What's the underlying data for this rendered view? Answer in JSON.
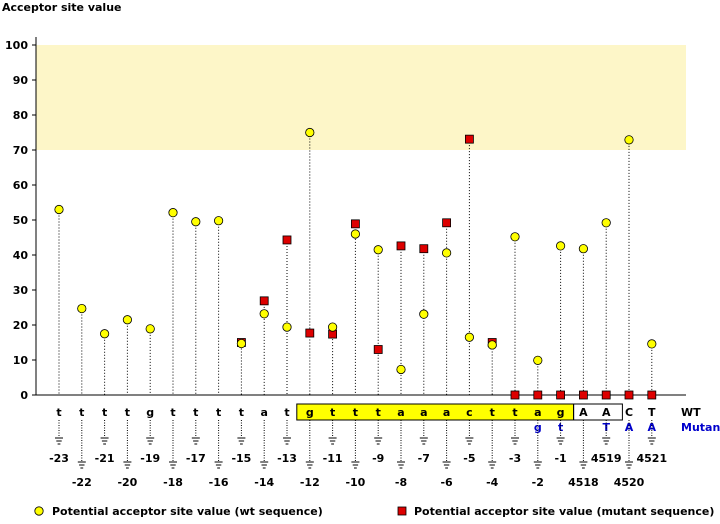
{
  "chart_data": {
    "type": "scatter",
    "ylabel": "Acceptor site value",
    "ylim": [
      0,
      100
    ],
    "yticks": [
      0,
      10,
      20,
      30,
      40,
      50,
      60,
      70,
      80,
      90,
      100
    ],
    "grid": false,
    "highlight_band": {
      "from": 70,
      "to": 100,
      "color": "#fdf6c8"
    },
    "legend_position": "bottom",
    "columns": [
      {
        "wt": "t",
        "mut": "",
        "pos": "-23",
        "wt_value": 53.0,
        "mut_value": null
      },
      {
        "wt": "t",
        "mut": "",
        "pos": "-22",
        "wt_value": 24.7,
        "mut_value": null
      },
      {
        "wt": "t",
        "mut": "",
        "pos": "-21",
        "wt_value": 17.5,
        "mut_value": null
      },
      {
        "wt": "t",
        "mut": "",
        "pos": "-20",
        "wt_value": 21.5,
        "mut_value": null
      },
      {
        "wt": "g",
        "mut": "",
        "pos": "-19",
        "wt_value": 18.9,
        "mut_value": null
      },
      {
        "wt": "t",
        "mut": "",
        "pos": "-18",
        "wt_value": 52.1,
        "mut_value": null
      },
      {
        "wt": "t",
        "mut": "",
        "pos": "-17",
        "wt_value": 49.5,
        "mut_value": null
      },
      {
        "wt": "t",
        "mut": "",
        "pos": "-16",
        "wt_value": 49.8,
        "mut_value": null
      },
      {
        "wt": "t",
        "mut": "",
        "pos": "-15",
        "wt_value": 14.7,
        "mut_value": 15.0
      },
      {
        "wt": "a",
        "mut": "",
        "pos": "-14",
        "wt_value": 23.2,
        "mut_value": 26.9
      },
      {
        "wt": "t",
        "mut": "",
        "pos": "-13",
        "wt_value": 19.4,
        "mut_value": 44.3
      },
      {
        "wt": "g",
        "mut": "",
        "pos": "-12",
        "wt_value": 75.0,
        "mut_value": 17.7
      },
      {
        "wt": "t",
        "mut": "",
        "pos": "-11",
        "wt_value": 19.4,
        "mut_value": 17.4
      },
      {
        "wt": "t",
        "mut": "",
        "pos": "-10",
        "wt_value": 46.0,
        "mut_value": 48.9
      },
      {
        "wt": "t",
        "mut": "",
        "pos": "-9",
        "wt_value": 41.5,
        "mut_value": 13.0
      },
      {
        "wt": "a",
        "mut": "",
        "pos": "-8",
        "wt_value": 7.3,
        "mut_value": 42.6
      },
      {
        "wt": "a",
        "mut": "",
        "pos": "-7",
        "wt_value": 23.1,
        "mut_value": 41.8
      },
      {
        "wt": "a",
        "mut": "",
        "pos": "-6",
        "wt_value": 40.6,
        "mut_value": 49.2
      },
      {
        "wt": "c",
        "mut": "",
        "pos": "-5",
        "wt_value": 16.5,
        "mut_value": 73.1
      },
      {
        "wt": "t",
        "mut": "",
        "pos": "-4",
        "wt_value": 14.3,
        "mut_value": 15.0
      },
      {
        "wt": "t",
        "mut": "",
        "pos": "-3",
        "wt_value": 45.2,
        "mut_value": 0
      },
      {
        "wt": "a",
        "mut": "g",
        "pos": "-2",
        "wt_value": 9.9,
        "mut_value": 0
      },
      {
        "wt": "g",
        "mut": "t",
        "pos": "-1",
        "wt_value": 42.6,
        "mut_value": 0
      },
      {
        "wt": "A",
        "mut": "",
        "pos": "4518",
        "wt_value": 41.8,
        "mut_value": 0
      },
      {
        "wt": "A",
        "mut": "T",
        "pos": "4519",
        "wt_value": 49.2,
        "mut_value": 0
      },
      {
        "wt": "C",
        "mut": "A",
        "pos": "4520",
        "wt_value": 72.9,
        "mut_value": 0
      },
      {
        "wt": "T",
        "mut": "A",
        "pos": "4521",
        "wt_value": 14.6,
        "mut_value": 0
      }
    ],
    "row_labels": {
      "wt": "WT",
      "mutant": "Mutant"
    },
    "legend": [
      {
        "label": "Potential acceptor site value (wt sequence)",
        "marker": "circle",
        "color": "#ffff00"
      },
      {
        "label": "Potential acceptor site value (mutant sequence)",
        "marker": "square",
        "color": "#dd0000"
      }
    ],
    "colors": {
      "wt_marker": "#ffff00",
      "mut_marker": "#dd0000",
      "highlight_box": "#ffff00",
      "mutant_text": "#0000cc"
    }
  }
}
